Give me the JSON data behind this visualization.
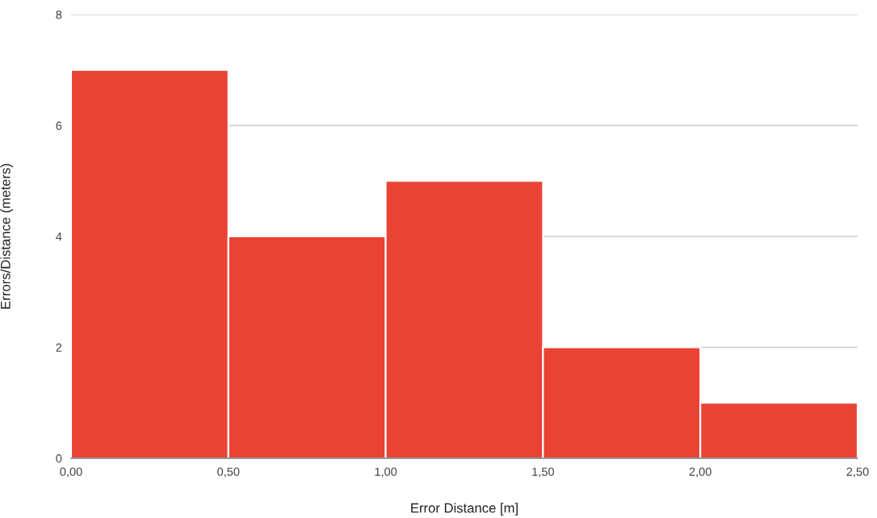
{
  "chart_data": {
    "type": "histogram",
    "xlabel": "Error Distance [m]",
    "ylabel": "Errors/Distance (meters)",
    "bins": [
      0,
      0.5,
      1,
      1.5,
      2,
      2.5
    ],
    "values": [
      7,
      4,
      5,
      2,
      1
    ],
    "color": "#ea4335",
    "xlim": [
      0,
      2.5
    ],
    "xticks": [
      {
        "value": 0,
        "label": "0,00"
      },
      {
        "value": 0.5,
        "label": "0,50"
      },
      {
        "value": 1,
        "label": "1,00"
      },
      {
        "value": 1.5,
        "label": "1,50"
      },
      {
        "value": 2,
        "label": "2,00"
      },
      {
        "value": 2.5,
        "label": "2,50"
      }
    ],
    "ylim": [
      0,
      8
    ],
    "yticks": [
      0,
      2,
      4,
      6,
      8
    ],
    "grid": "y"
  }
}
